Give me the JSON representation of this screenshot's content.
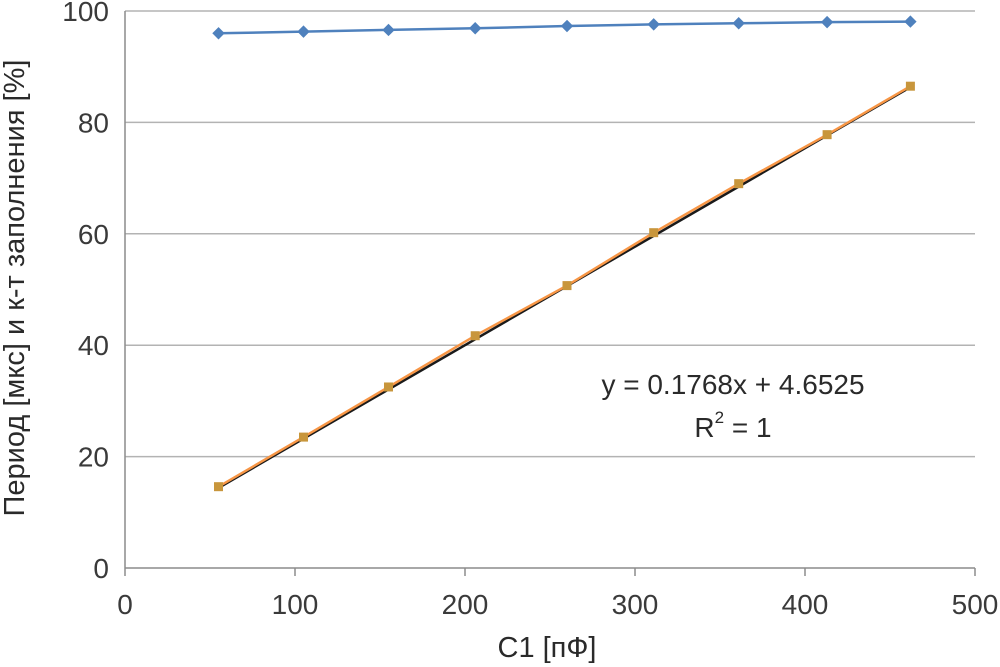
{
  "chart_data": {
    "type": "scatter",
    "xlabel": "C1 [пФ]",
    "ylabel": "Период [мкс] и к-т заполнения [%]",
    "xlim": [
      0,
      500
    ],
    "ylim": [
      0,
      100
    ],
    "xticks": [
      0,
      100,
      200,
      300,
      400,
      500
    ],
    "yticks": [
      0,
      20,
      40,
      60,
      80,
      100
    ],
    "grid": "horizontal",
    "series": [
      {
        "marker": "diamond",
        "line": true,
        "color": "#4f81bd",
        "x": [
          55,
          105,
          155,
          206,
          260,
          311,
          361,
          413,
          462
        ],
        "y": [
          96.0,
          96.3,
          96.6,
          96.9,
          97.3,
          97.6,
          97.8,
          98.0,
          98.1
        ]
      },
      {
        "marker": "square",
        "line": true,
        "color": "#f79646",
        "marker_color": "#c8963c",
        "x": [
          55,
          105,
          155,
          206,
          260,
          311,
          361,
          413,
          462
        ],
        "y": [
          14.6,
          23.5,
          32.5,
          41.7,
          50.7,
          60.2,
          69.0,
          77.8,
          86.5
        ]
      }
    ],
    "trendline": {
      "series_index": 1,
      "type": "linear",
      "slope": 0.1768,
      "intercept": 4.6525,
      "color": "#1a1a1a",
      "equation_text": "y = 0.1768x + 4.6525",
      "r2_prefix": "R",
      "r2_exp": "2",
      "r2_suffix": " = 1"
    }
  }
}
